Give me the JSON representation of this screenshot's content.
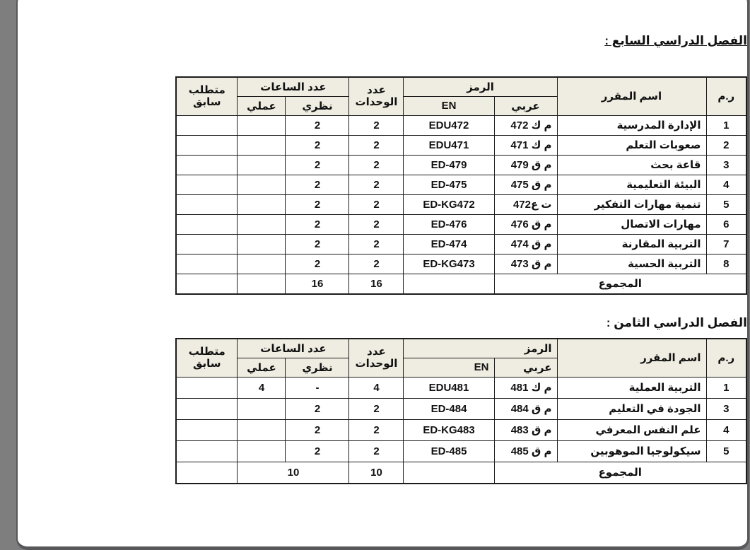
{
  "viewer": {
    "backdrop_color": "#7e7e7e",
    "page_color": "#ffffff",
    "page_border_color": "#58585a"
  },
  "colors": {
    "header_bg": "#efede1",
    "grid": "#1c1c1c",
    "text": "#111111"
  },
  "header": {
    "serial": "ر.م",
    "course_name": "اسم المقرر",
    "code_group": "الرمز",
    "code_ar": "عربي",
    "code_en": "EN",
    "units_line1": "عدد",
    "units_line2": "الوحدات",
    "hours_group": "عدد الساعات",
    "hours_theory": "نظري",
    "hours_practical": "عملي",
    "prereq_line1": "متطلب",
    "prereq_line2": "سابق"
  },
  "sections": {
    "s7": {
      "title": "الفصل الدراسي السابع :",
      "rows": [
        {
          "no": "1",
          "name": "الإدارة المدرسية",
          "ar": "م ك 472",
          "en": "EDU472",
          "units": "2",
          "theory": "2",
          "practical": "",
          "prereq": ""
        },
        {
          "no": "2",
          "name": "صعوبات التعلم",
          "ar": "م ك 471",
          "en": "EDU471",
          "units": "2",
          "theory": "2",
          "practical": "",
          "prereq": ""
        },
        {
          "no": "3",
          "name": "قاعة بحث",
          "ar": "م ق 479",
          "en": "ED-479",
          "units": "2",
          "theory": "2",
          "practical": "",
          "prereq": ""
        },
        {
          "no": "4",
          "name": "البيئة التعليمية",
          "ar": "م ق 475",
          "en": "ED-475",
          "units": "2",
          "theory": "2",
          "practical": "",
          "prereq": ""
        },
        {
          "no": "5",
          "name": "تنمية مهارات التفكير",
          "ar": "ت ع472",
          "en": "ED-KG472",
          "units": "2",
          "theory": "2",
          "practical": "",
          "prereq": ""
        },
        {
          "no": "6",
          "name": "مهارات الاتصال",
          "ar": "م ق 476",
          "en": "ED-476",
          "units": "2",
          "theory": "2",
          "practical": "",
          "prereq": ""
        },
        {
          "no": "7",
          "name": "التربية المقارنة",
          "ar": "م ق 474",
          "en": "ED-474",
          "units": "2",
          "theory": "2",
          "practical": "",
          "prereq": ""
        },
        {
          "no": "8",
          "name": "التربية الحسية",
          "ar": "م ق 473",
          "en": "ED-KG473",
          "units": "2",
          "theory": "2",
          "practical": "",
          "prereq": ""
        }
      ],
      "total": {
        "label": "المجموع",
        "en": "",
        "units": "16",
        "theory": "16",
        "practical": "",
        "prereq": ""
      }
    },
    "s8": {
      "title": "الفصل الدراسي الثامن :",
      "rows": [
        {
          "no": "1",
          "name": "التربية العملية",
          "ar": "م ك 481",
          "en": "EDU481",
          "units": "4",
          "theory": "-",
          "practical": "4",
          "prereq": ""
        },
        {
          "no": "3",
          "name": "الجودة في التعليم",
          "ar": "م ق 484",
          "en": "ED-484",
          "units": "2",
          "theory": "2",
          "practical": "",
          "prereq": ""
        },
        {
          "no": "4",
          "name": "علم النفس المعرفي",
          "ar": "م ق 483",
          "en": "ED-KG483",
          "units": "2",
          "theory": "2",
          "practical": "",
          "prereq": ""
        },
        {
          "no": "5",
          "name": "سيكولوجيا الموهوبين",
          "ar": "م ق 485",
          "en": "ED-485",
          "units": "2",
          "theory": "2",
          "practical": "",
          "prereq": ""
        }
      ],
      "total": {
        "label": "المجموع",
        "en": "",
        "units": "10",
        "hours": "10",
        "prereq": ""
      }
    }
  }
}
